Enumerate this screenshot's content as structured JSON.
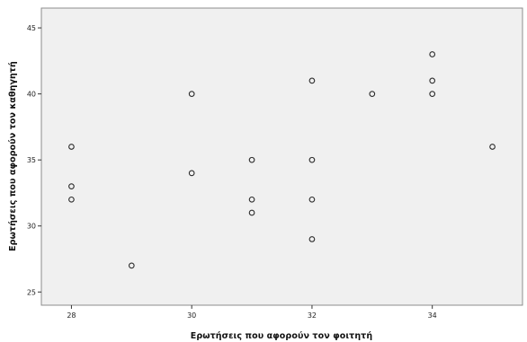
{
  "chart_data": {
    "type": "scatter",
    "title": "",
    "xlabel": "Ερωτήσεις που αφορούν τον φοιτητή",
    "ylabel": "Ερωτήσεις που αφορούν τον καθηγητή",
    "xlim": [
      27.5,
      35.5
    ],
    "ylim": [
      24.0,
      46.5
    ],
    "x_ticks": [
      28,
      30,
      32,
      34
    ],
    "y_ticks": [
      25,
      30,
      35,
      40,
      45
    ],
    "x_tick_labels": [
      "28",
      "30",
      "32",
      "34"
    ],
    "y_tick_labels": [
      "25",
      "30",
      "35",
      "40",
      "45"
    ],
    "grid": false,
    "plot_background": "#f0f0f0",
    "frame_color": "#8c8c8c",
    "marker": "hollow-circle",
    "points": [
      {
        "x": 28,
        "y": 36
      },
      {
        "x": 28,
        "y": 33
      },
      {
        "x": 28,
        "y": 32
      },
      {
        "x": 29,
        "y": 27
      },
      {
        "x": 30,
        "y": 40
      },
      {
        "x": 30,
        "y": 34
      },
      {
        "x": 31,
        "y": 35
      },
      {
        "x": 31,
        "y": 32
      },
      {
        "x": 31,
        "y": 31
      },
      {
        "x": 32,
        "y": 41
      },
      {
        "x": 32,
        "y": 35
      },
      {
        "x": 32,
        "y": 32
      },
      {
        "x": 32,
        "y": 29
      },
      {
        "x": 33,
        "y": 40
      },
      {
        "x": 34,
        "y": 43
      },
      {
        "x": 34,
        "y": 41
      },
      {
        "x": 34,
        "y": 40
      },
      {
        "x": 35,
        "y": 36
      }
    ]
  }
}
